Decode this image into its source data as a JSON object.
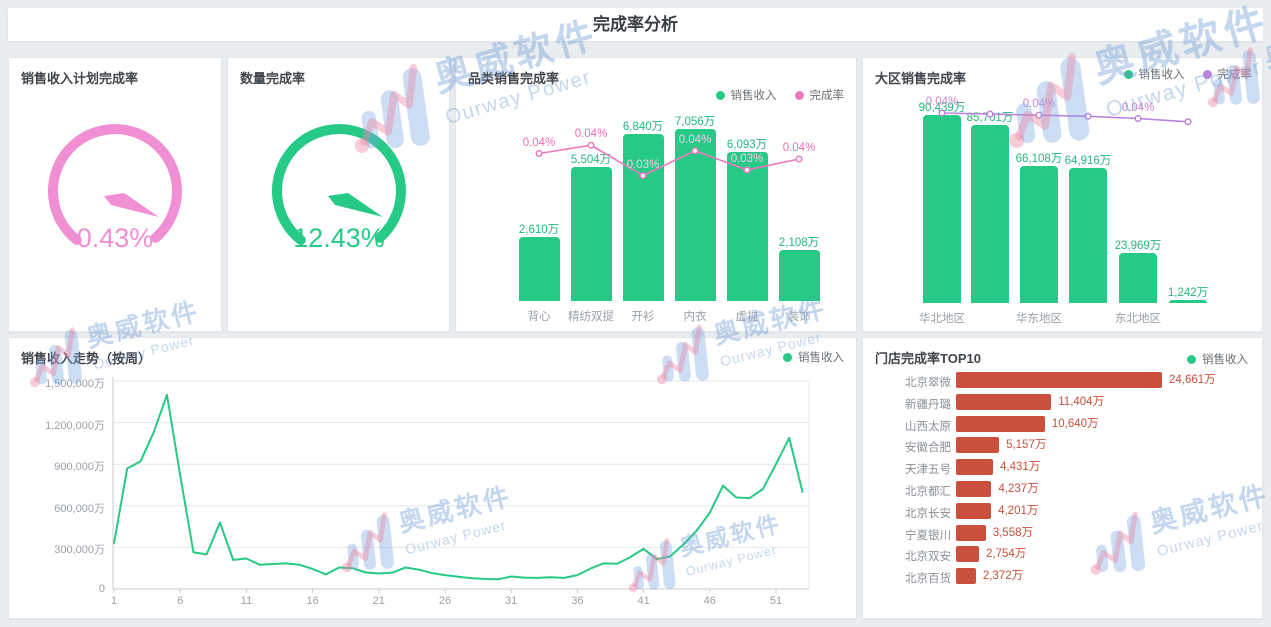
{
  "header": {
    "title": "完成率分析"
  },
  "watermark": {
    "cn": "奥威软件",
    "en": "Ourway Power"
  },
  "colors": {
    "green": "#26c986",
    "green_label": "#25b87d",
    "pink_line": "#f078bc",
    "pink_label": "#ee6eb4",
    "pink_label_on_bar": "#f7cfe8",
    "gauge_pink": "#f08fd4",
    "purple_line": "#bd84de",
    "purple_label": "#cf87cd",
    "red_bar": "#c9503c",
    "axis_text": "#9ba1a8"
  },
  "chart_data": [
    {
      "type": "gauge",
      "title": "销售收入计划完成率",
      "value_percent": 0.43,
      "value_label": "0.43%",
      "color": "#f08fd4"
    },
    {
      "type": "gauge",
      "title": "数量完成率",
      "value_percent": 12.43,
      "value_label": "12.43%",
      "color": "#26c986"
    },
    {
      "type": "bar-line",
      "title": "品类销售完成率",
      "legend": [
        {
          "label": "销售收入",
          "color": "#26c986"
        },
        {
          "label": "完成率",
          "color": "#f078bc"
        }
      ],
      "categories": [
        "背心",
        "精纺双提",
        "开衫",
        "内衣",
        "虚提",
        "装饰"
      ],
      "bar_series": {
        "name": "销售收入",
        "unit": "万",
        "values": [
          2610,
          5504,
          6840,
          7056,
          6093,
          2108
        ],
        "labels": [
          "2,610万",
          "5,504万",
          "6,840万",
          "7,056万",
          "6,093万",
          "2,108万"
        ]
      },
      "line_series": {
        "name": "完成率",
        "unit": "%",
        "values": [
          0.04,
          0.043,
          0.032,
          0.041,
          0.034,
          0.038
        ],
        "labels": [
          "0.04%",
          "0.04%",
          "0.03%",
          "0.04%",
          "0.03%",
          "0.04%"
        ],
        "label_on_bar": [
          false,
          false,
          true,
          true,
          true,
          false
        ]
      }
    },
    {
      "type": "bar-line",
      "title": "大区销售完成率",
      "legend": [
        {
          "label": "销售收入",
          "color": "#26c986"
        },
        {
          "label": "完成率",
          "color": "#bd84de"
        }
      ],
      "x_axis_labels": [
        "华北地区",
        "",
        "华东地区",
        "",
        "东北地区",
        ""
      ],
      "bar_series": {
        "name": "销售收入",
        "unit": "万",
        "values": [
          90439,
          85701,
          66108,
          64916,
          23969,
          1242
        ],
        "labels": [
          "90,439万",
          "85,701万",
          "66,108万",
          "64,916万",
          "23,969万",
          "1,242万"
        ]
      },
      "line_series": {
        "name": "完成率",
        "unit": "%",
        "values": [
          0.042,
          0.0415,
          0.041,
          0.0405,
          0.0395,
          0.038
        ],
        "labels": [
          "0.04%",
          "",
          "0.04%",
          "",
          "0.04%",
          ""
        ]
      }
    },
    {
      "type": "line",
      "title": "销售收入走势（按周）",
      "legend": [
        {
          "label": "销售收入",
          "color": "#26c986"
        }
      ],
      "x_unit": "周",
      "weeks_start": 1,
      "weeks_count": 53,
      "x_ticks": [
        1,
        6,
        11,
        16,
        21,
        26,
        31,
        36,
        41,
        46,
        51
      ],
      "ylim": [
        0,
        1500000
      ],
      "y_ticks": [
        {
          "v": 0,
          "label": "0"
        },
        {
          "v": 300000,
          "label": "300,000万"
        },
        {
          "v": 600000,
          "label": "600,000万"
        },
        {
          "v": 900000,
          "label": "900,000万"
        },
        {
          "v": 1200000,
          "label": "1,200,000万"
        },
        {
          "v": 1500000,
          "label": "1,500,000万"
        }
      ],
      "values_wan": [
        330000,
        870000,
        920000,
        1130000,
        1400000,
        820000,
        265000,
        250000,
        480000,
        210000,
        220000,
        175000,
        180000,
        185000,
        175000,
        145000,
        105000,
        155000,
        150000,
        120000,
        112000,
        118000,
        155000,
        140000,
        115000,
        100000,
        88000,
        78000,
        72000,
        70000,
        90000,
        82000,
        80000,
        85000,
        80000,
        100000,
        148000,
        185000,
        182000,
        230000,
        290000,
        215000,
        235000,
        320000,
        420000,
        550000,
        745000,
        660000,
        655000,
        720000,
        900000,
        1090000,
        700000
      ]
    },
    {
      "type": "hbar",
      "title": "门店完成率TOP10",
      "legend": [
        {
          "label": "销售收入",
          "color": "#26c986"
        }
      ],
      "unit": "万",
      "items": [
        {
          "name": "北京翠微",
          "value_wan": 24661,
          "label": "24,661万"
        },
        {
          "name": "新疆丹璐",
          "value_wan": 11404,
          "label": "11,404万"
        },
        {
          "name": "山西太原",
          "value_wan": 10640,
          "label": "10,640万"
        },
        {
          "name": "安徽合肥",
          "value_wan": 5157,
          "label": "5,157万"
        },
        {
          "name": "天津五号",
          "value_wan": 4431,
          "label": "4,431万"
        },
        {
          "name": "北京都汇",
          "value_wan": 4237,
          "label": "4,237万"
        },
        {
          "name": "北京长安",
          "value_wan": 4201,
          "label": "4,201万"
        },
        {
          "name": "宁夏银川",
          "value_wan": 3558,
          "label": "3,558万"
        },
        {
          "name": "北京双安",
          "value_wan": 2754,
          "label": "2,754万"
        },
        {
          "name": "北京百货",
          "value_wan": 2372,
          "label": "2,372万"
        }
      ]
    }
  ]
}
